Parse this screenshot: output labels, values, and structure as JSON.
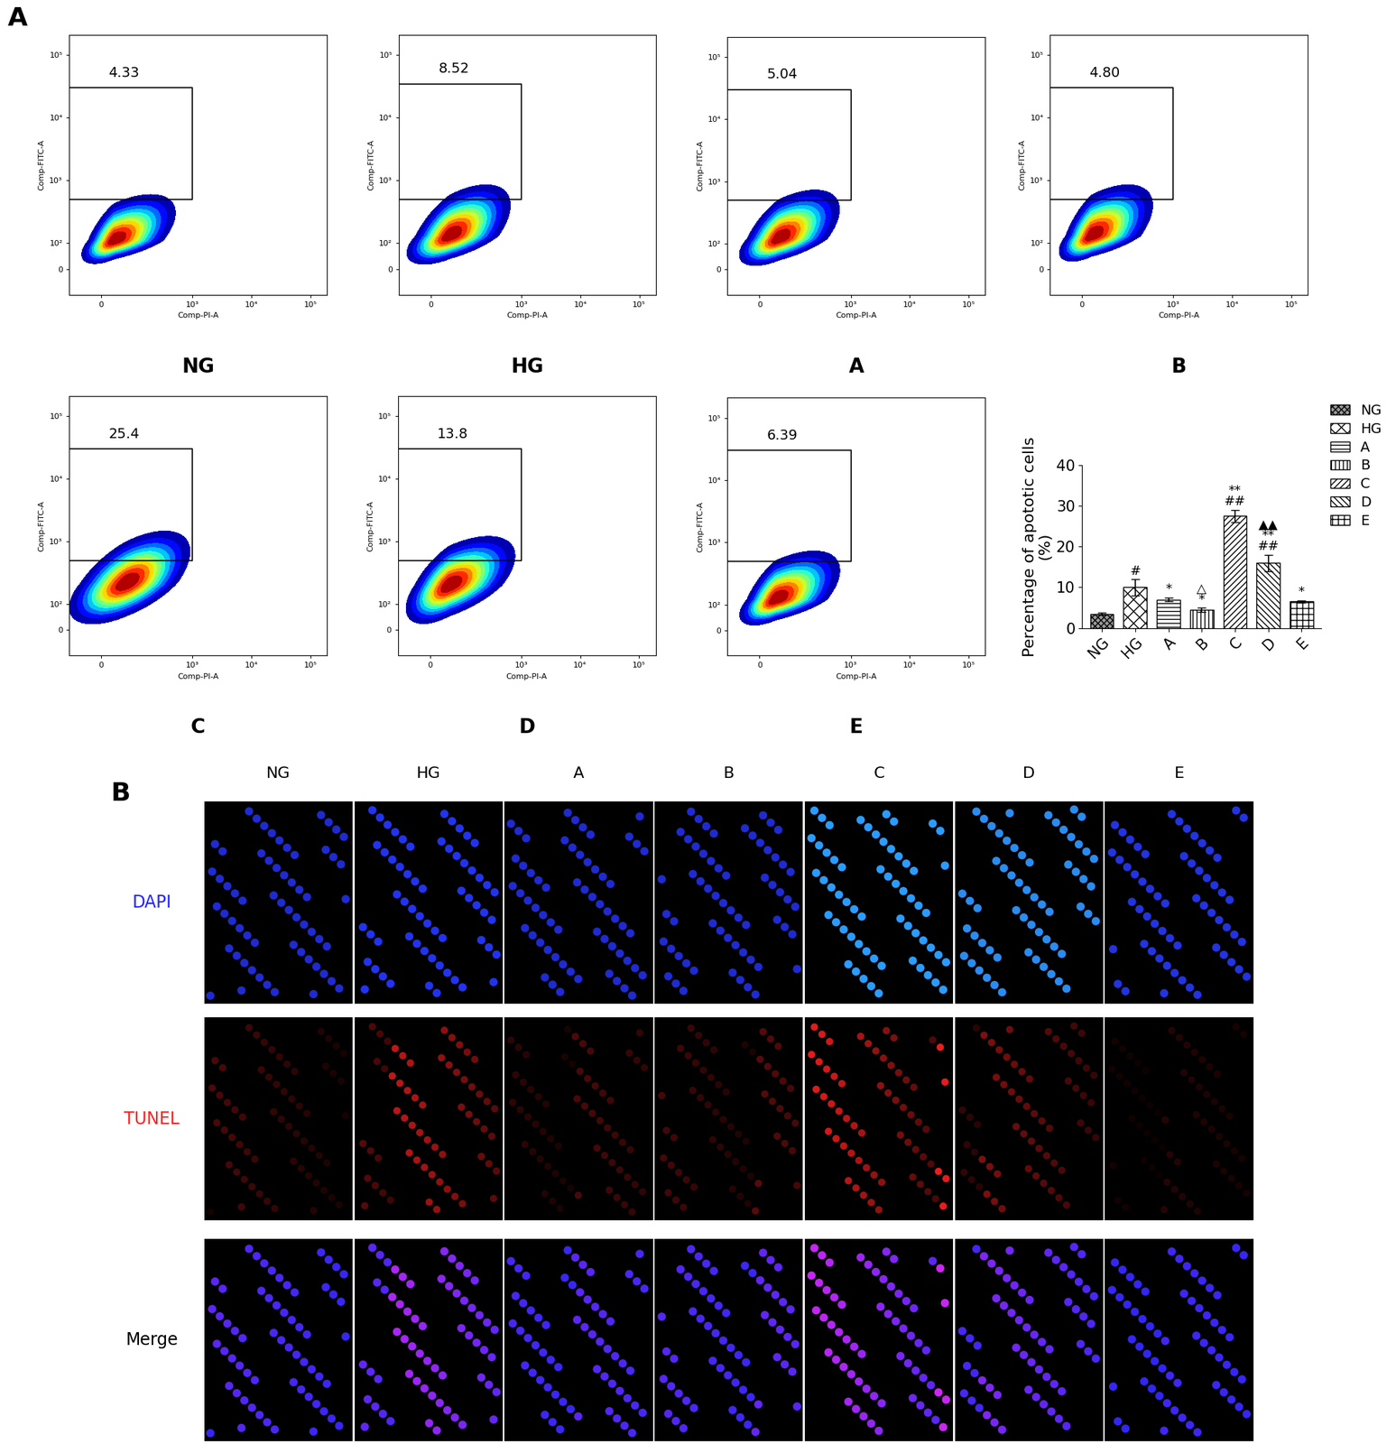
{
  "chart_data": [
    {
      "type": "density",
      "title": "NG",
      "x_label": "Comp-PI-A",
      "y_label": "Comp-FITC-A",
      "log": true,
      "xlim": [
        -100,
        190000
      ],
      "ylim": [
        -100,
        210000
      ],
      "xticks": [
        0,
        {
          "value": 1000,
          "label": "10³"
        },
        {
          "value": 10000,
          "label": "10⁴"
        },
        {
          "value": 100000,
          "label": "10⁵"
        }
      ],
      "yticks": [
        0,
        {
          "value": 100,
          "label": "10²"
        },
        {
          "value": 1000,
          "label": "10³"
        },
        {
          "value": 10000,
          "label": "10⁴"
        },
        {
          "value": 100000,
          "label": "10⁵"
        }
      ],
      "gate": {
        "x": [
          -100,
          1000
        ],
        "y": [
          500,
          30000
        ],
        "value": 4.33,
        "label": "4.33"
      },
      "cloud": {
        "x": [
          -50,
          400
        ],
        "y": [
          30,
          500
        ],
        "peak": [
          40,
          110
        ]
      }
    },
    {
      "type": "density",
      "title": "HG",
      "x_label": "Comp-PI-A",
      "y_label": "Comp-FITC-A",
      "log": true,
      "xlim": [
        -100,
        190000
      ],
      "ylim": [
        -100,
        210000
      ],
      "xticks": [
        0,
        {
          "value": 1000,
          "label": "10³"
        },
        {
          "value": 10000,
          "label": "10⁴"
        },
        {
          "value": 100000,
          "label": "10⁵"
        }
      ],
      "yticks": [
        0,
        {
          "value": 100,
          "label": "10²"
        },
        {
          "value": 1000,
          "label": "10³"
        },
        {
          "value": 10000,
          "label": "10⁴"
        },
        {
          "value": 100000,
          "label": "10⁵"
        }
      ],
      "gate": {
        "x": [
          -100,
          1000
        ],
        "y": [
          500,
          35000
        ],
        "value": 8.52,
        "label": "8.52"
      },
      "cloud": {
        "x": [
          -60,
          500
        ],
        "y": [
          30,
          700
        ],
        "peak": [
          60,
          130
        ]
      }
    },
    {
      "type": "density",
      "title": "A",
      "x_label": "Comp-PI-A",
      "y_label": "Comp-FITC-A",
      "log": true,
      "xlim": [
        -100,
        190000
      ],
      "ylim": [
        -100,
        210000
      ],
      "xticks": [
        0,
        {
          "value": 1000,
          "label": "10³"
        },
        {
          "value": 10000,
          "label": "10⁴"
        },
        {
          "value": 100000,
          "label": "10⁵"
        }
      ],
      "yticks": [
        0,
        {
          "value": 100,
          "label": "10²"
        },
        {
          "value": 1000,
          "label": "10³"
        },
        {
          "value": 10000,
          "label": "10⁴"
        },
        {
          "value": 100000,
          "label": "10⁵"
        }
      ],
      "gate": {
        "x": [
          -100,
          1000
        ],
        "y": [
          500,
          30000
        ],
        "value": 5.04,
        "label": "5.04"
      },
      "cloud": {
        "x": [
          -50,
          500
        ],
        "y": [
          25,
          600
        ],
        "peak": [
          60,
          120
        ]
      }
    },
    {
      "type": "density",
      "title": "B",
      "x_label": "Comp-PI-A",
      "y_label": "Comp-FITC-A",
      "log": true,
      "xlim": [
        -100,
        190000
      ],
      "ylim": [
        -100,
        210000
      ],
      "xticks": [
        0,
        {
          "value": 1000,
          "label": "10³"
        },
        {
          "value": 10000,
          "label": "10⁴"
        },
        {
          "value": 100000,
          "label": "10⁵"
        }
      ],
      "yticks": [
        0,
        {
          "value": 100,
          "label": "10²"
        },
        {
          "value": 1000,
          "label": "10³"
        },
        {
          "value": 10000,
          "label": "10⁴"
        },
        {
          "value": 100000,
          "label": "10⁵"
        }
      ],
      "gate": {
        "x": [
          -100,
          1000
        ],
        "y": [
          500,
          30000
        ],
        "value": 4.8,
        "label": "4.80"
      },
      "cloud": {
        "x": [
          -60,
          350
        ],
        "y": [
          40,
          700
        ],
        "peak": [
          30,
          130
        ]
      }
    },
    {
      "type": "density",
      "title": "C",
      "x_label": "Comp-PI-A",
      "y_label": "Comp-FITC-A",
      "log": true,
      "xlim": [
        -100,
        190000
      ],
      "ylim": [
        -100,
        210000
      ],
      "xticks": [
        0,
        {
          "value": 1000,
          "label": "10³"
        },
        {
          "value": 10000,
          "label": "10⁴"
        },
        {
          "value": 100000,
          "label": "10⁵"
        }
      ],
      "yticks": [
        0,
        {
          "value": 100,
          "label": "10²"
        },
        {
          "value": 1000,
          "label": "10³"
        },
        {
          "value": 10000,
          "label": "10⁴"
        },
        {
          "value": 100000,
          "label": "10⁵"
        }
      ],
      "gate": {
        "x": [
          -100,
          1000
        ],
        "y": [
          500,
          30000
        ],
        "value": 25.4,
        "label": "25.4"
      },
      "cloud": {
        "x": [
          -80,
          700
        ],
        "y": [
          40,
          1200
        ],
        "peak": [
          80,
          220
        ]
      }
    },
    {
      "type": "density",
      "title": "D",
      "x_label": "Comp-PI-A",
      "y_label": "Comp-FITC-A",
      "log": true,
      "xlim": [
        -100,
        190000
      ],
      "ylim": [
        -100,
        210000
      ],
      "xticks": [
        0,
        {
          "value": 1000,
          "label": "10³"
        },
        {
          "value": 10000,
          "label": "10⁴"
        },
        {
          "value": 100000,
          "label": "10⁵"
        }
      ],
      "yticks": [
        0,
        {
          "value": 100,
          "label": "10²"
        },
        {
          "value": 1000,
          "label": "10³"
        },
        {
          "value": 10000,
          "label": "10⁴"
        },
        {
          "value": 100000,
          "label": "10⁵"
        }
      ],
      "gate": {
        "x": [
          -100,
          1000
        ],
        "y": [
          500,
          30000
        ],
        "value": 13.8,
        "label": "13.8"
      },
      "cloud": {
        "x": [
          -60,
          600
        ],
        "y": [
          40,
          1000
        ],
        "peak": [
          60,
          200
        ]
      }
    },
    {
      "type": "density",
      "title": "E",
      "x_label": "Comp-PI-A",
      "y_label": "Comp-FITC-A",
      "log": true,
      "xlim": [
        -100,
        190000
      ],
      "ylim": [
        -100,
        210000
      ],
      "xticks": [
        0,
        {
          "value": 1000,
          "label": "10³"
        },
        {
          "value": 10000,
          "label": "10⁴"
        },
        {
          "value": 100000,
          "label": "10⁵"
        }
      ],
      "yticks": [
        0,
        {
          "value": 100,
          "label": "10²"
        },
        {
          "value": 1000,
          "label": "10³"
        },
        {
          "value": 10000,
          "label": "10⁴"
        },
        {
          "value": 100000,
          "label": "10⁵"
        }
      ],
      "gate": {
        "x": [
          -100,
          1000
        ],
        "y": [
          500,
          30000
        ],
        "value": 6.39,
        "label": "6.39"
      },
      "cloud": {
        "x": [
          -50,
          500
        ],
        "y": [
          30,
          600
        ],
        "peak": [
          50,
          120
        ]
      }
    },
    {
      "type": "bar",
      "y_label": "Percentage of apototic cells\n(%)",
      "categories": [
        "NG",
        "HG",
        "A",
        "B",
        "C",
        "D",
        "E"
      ],
      "values": [
        3.5,
        10,
        7,
        4.5,
        27.5,
        16,
        6.5
      ],
      "errors": [
        0.3,
        2,
        0.5,
        0.5,
        1.5,
        2,
        0.3
      ],
      "significance": [
        null,
        "#",
        "*",
        "△\n*",
        "**\n##",
        "▲▲\n**\n##",
        "*"
      ],
      "color": "#ffffff",
      "ylim": [
        0,
        40
      ],
      "yticks": [
        0,
        10,
        20,
        30,
        40
      ],
      "legend": "right"
    }
  ],
  "panel_labels": [
    "A",
    "B"
  ],
  "image_panel": {
    "columns": [
      "NG",
      "HG",
      "A",
      "B",
      "C",
      "D",
      "E"
    ],
    "rows": [
      {
        "label": "DAPI",
        "color": "#2424ff"
      },
      {
        "label": "TUNEL",
        "color": "#ff2020"
      },
      {
        "label": "Merge",
        "color": "#000000"
      }
    ]
  }
}
